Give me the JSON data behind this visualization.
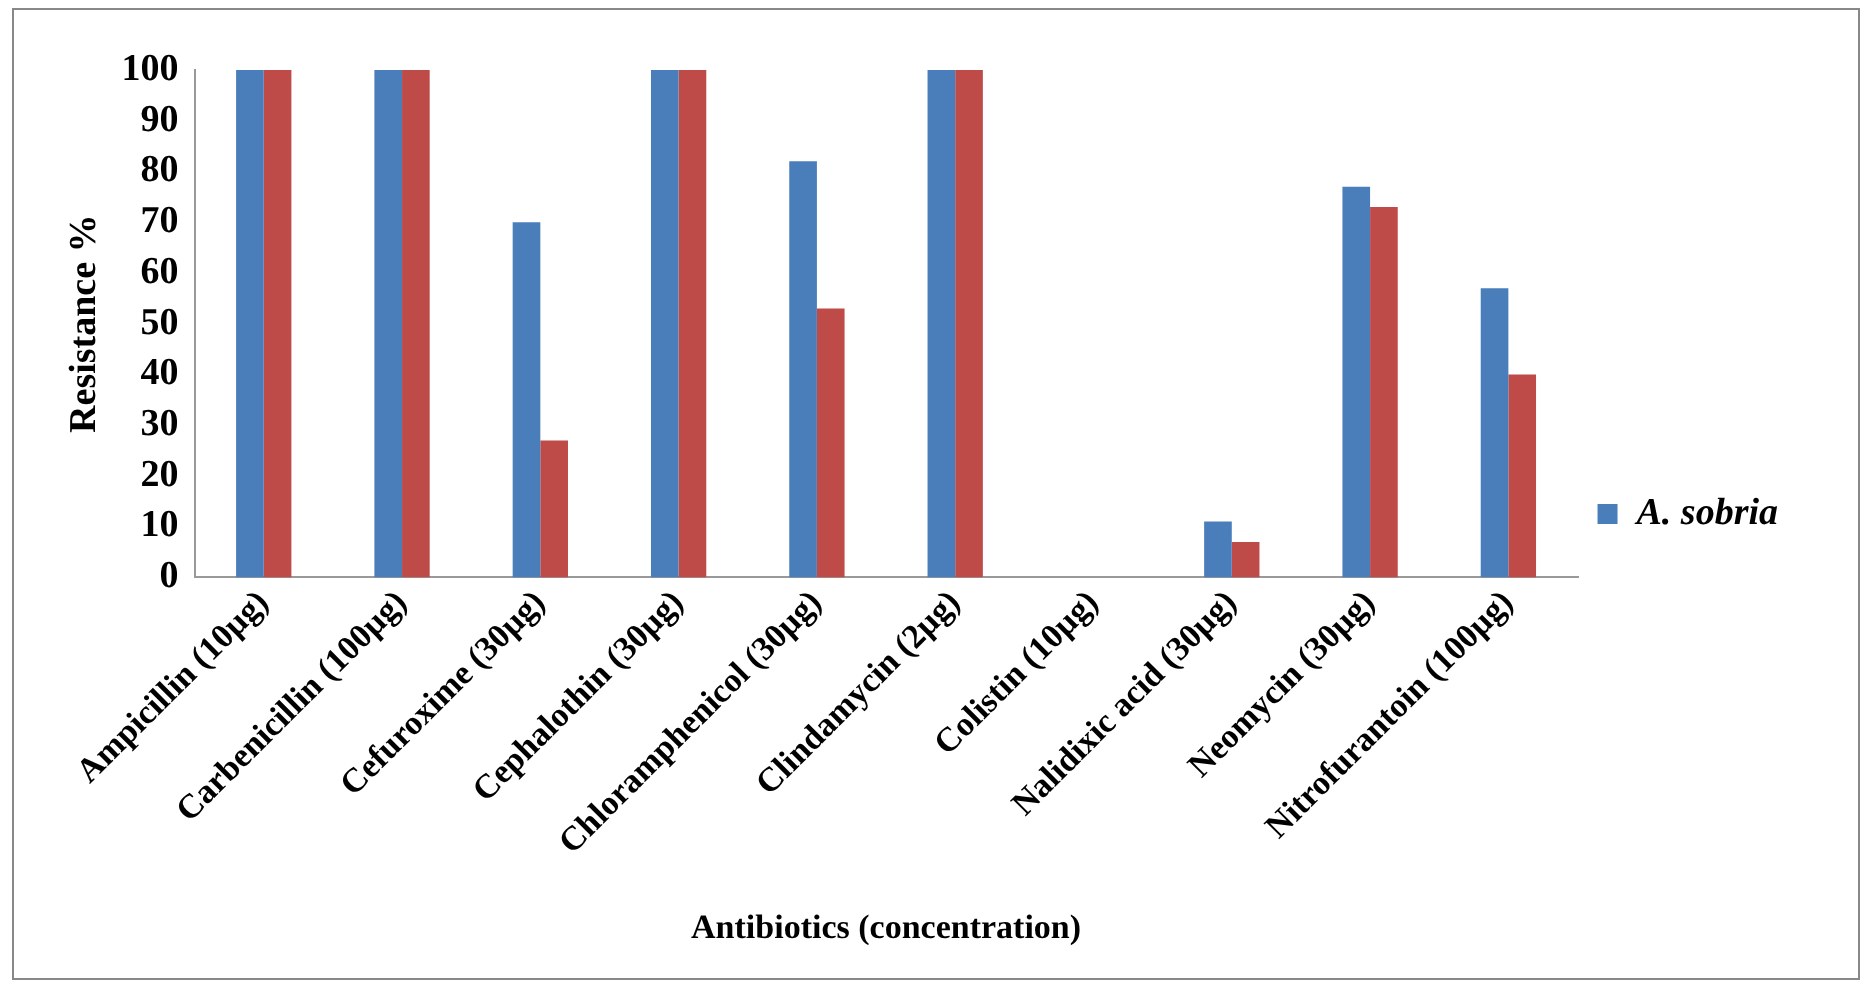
{
  "chart_data": {
    "type": "bar",
    "xlabel": "Antibiotics (concentration)",
    "ylabel": "Resistance %",
    "categories": [
      "Ampicillin (10µg)",
      "Carbenicillin (100µg)",
      "Cefuroxime (30µg)",
      "Cephalothin (30µg)",
      "Chloramphenicol (30µg)",
      "Clindamycin (2µg)",
      "Colistin (10µg)",
      "Nalidixic acid (30µg)",
      "Neomycin (30µg)",
      "Nitrofurantoin (100µg)"
    ],
    "series": [
      {
        "name": "A. sobria",
        "color": "#4a7ebb",
        "values": [
          100,
          100,
          70,
          100,
          82,
          100,
          0,
          11,
          77,
          57
        ]
      },
      {
        "color": "#be4b48",
        "values": [
          100,
          100,
          27,
          100,
          53,
          100,
          0,
          7,
          73,
          40
        ]
      }
    ],
    "ylim": [
      0,
      100
    ],
    "yticks": [
      0,
      10,
      20,
      30,
      40,
      50,
      60,
      70,
      80,
      90,
      100
    ],
    "grid": false,
    "legend": "right"
  }
}
